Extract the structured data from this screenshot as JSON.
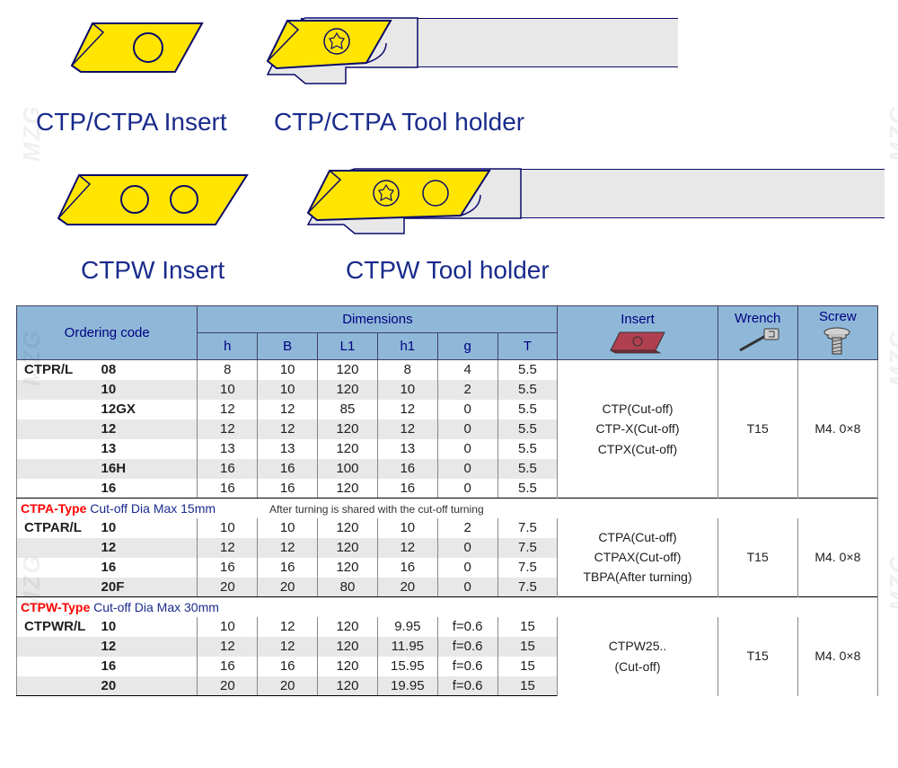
{
  "watermark": "MZG",
  "diagrams": {
    "insert_color": "#ffe500",
    "outline_color": "#0a0a6b",
    "holder_color": "#e8e8e8",
    "labels": {
      "ctp_insert": "CTP/CTPA  Insert",
      "ctp_holder": "CTP/CTPA  Tool holder",
      "ctpw_insert": "CTPW Insert",
      "ctpw_holder": "CTPW Tool holder"
    }
  },
  "table": {
    "header_bg": "#8fb8d8",
    "shade_bg": "#e8e8e8",
    "headers": {
      "ordering": "Ordering code",
      "dimensions": "Dimensions",
      "insert": "Insert",
      "wrench": "Wrench",
      "screw": "Screw",
      "h": "h",
      "B": "B",
      "L1": "L1",
      "h1": "h1",
      "g": "g",
      "T": "T"
    },
    "groups": [
      {
        "prefix": "CTPR/L",
        "rows": [
          {
            "size": "08",
            "h": "8",
            "B": "10",
            "L1": "120",
            "h1": "8",
            "g": "4",
            "T": "5.5",
            "shade": false
          },
          {
            "size": "10",
            "h": "10",
            "B": "10",
            "L1": "120",
            "h1": "10",
            "g": "2",
            "T": "5.5",
            "shade": true
          },
          {
            "size": "12GX",
            "h": "12",
            "B": "12",
            "L1": "85",
            "h1": "12",
            "g": "0",
            "T": "5.5",
            "shade": false
          },
          {
            "size": "12",
            "h": "12",
            "B": "12",
            "L1": "120",
            "h1": "12",
            "g": "0",
            "T": "5.5",
            "shade": true
          },
          {
            "size": "13",
            "h": "13",
            "B": "13",
            "L1": "120",
            "h1": "13",
            "g": "0",
            "T": "5.5",
            "shade": false
          },
          {
            "size": "16H",
            "h": "16",
            "B": "16",
            "L1": "100",
            "h1": "16",
            "g": "0",
            "T": "5.5",
            "shade": true
          },
          {
            "size": "16",
            "h": "16",
            "B": "16",
            "L1": "120",
            "h1": "16",
            "g": "0",
            "T": "5.5",
            "shade": false
          }
        ],
        "insert": "CTP(Cut-off)\nCTP-X(Cut-off)\nCTPX(Cut-off)",
        "wrench": "T15",
        "screw": "M4. 0×8"
      },
      {
        "section": {
          "type": "CTPA-Type",
          "note1": "Cut-off Dia Max 15mm",
          "note2": "After  turning is shared with the cut-off turning"
        },
        "prefix": "CTPAR/L",
        "rows": [
          {
            "size": "10",
            "h": "10",
            "B": "10",
            "L1": "120",
            "h1": "10",
            "g": "2",
            "T": "7.5",
            "shade": false
          },
          {
            "size": "12",
            "h": "12",
            "B": "12",
            "L1": "120",
            "h1": "12",
            "g": "0",
            "T": "7.5",
            "shade": true
          },
          {
            "size": "16",
            "h": "16",
            "B": "16",
            "L1": "120",
            "h1": "16",
            "g": "0",
            "T": "7.5",
            "shade": false
          },
          {
            "size": "20F",
            "h": "20",
            "B": "20",
            "L1": "80",
            "h1": "20",
            "g": "0",
            "T": "7.5",
            "shade": true
          }
        ],
        "insert": "CTPA(Cut-off)\nCTPAX(Cut-off)\nTBPA(After turning)",
        "wrench": "T15",
        "screw": "M4. 0×8"
      },
      {
        "section": {
          "type": "CTPW-Type",
          "note1": "Cut-off Dia Max 30mm",
          "note2": ""
        },
        "prefix": "CTPWR/L",
        "rows": [
          {
            "size": "10",
            "h": "10",
            "B": "12",
            "L1": "120",
            "h1": "9.95",
            "g": "f=0.6",
            "T": "15",
            "shade": false
          },
          {
            "size": "12",
            "h": "12",
            "B": "12",
            "L1": "120",
            "h1": "11.95",
            "g": "f=0.6",
            "T": "15",
            "shade": true
          },
          {
            "size": "16",
            "h": "16",
            "B": "16",
            "L1": "120",
            "h1": "15.95",
            "g": "f=0.6",
            "T": "15",
            "shade": false
          },
          {
            "size": "20",
            "h": "20",
            "B": "20",
            "L1": "120",
            "h1": "19.95",
            "g": "f=0.6",
            "T": "15",
            "shade": true
          }
        ],
        "insert": "CTPW25..\n(Cut-off)",
        "wrench": "T15",
        "screw": "M4. 0×8"
      }
    ]
  }
}
